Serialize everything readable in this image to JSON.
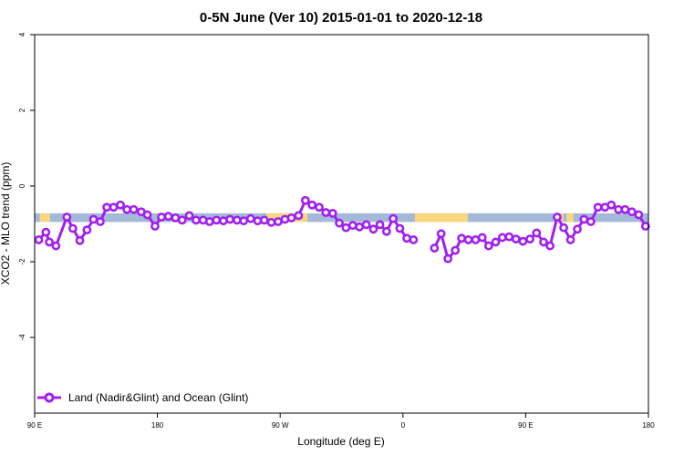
{
  "chart_data": {
    "type": "line",
    "title": "0-5N June (Ver 10)   2015-01-01 to 2020-12-18",
    "xlabel": "Longitude (deg E)",
    "ylabel": "XCO2 - MLO trend (ppm)",
    "xlim": [
      90,
      450
    ],
    "ylim": [
      -6,
      4
    ],
    "xticks": [
      {
        "value": 90,
        "label": "90 E"
      },
      {
        "value": 162,
        "label": "180"
      },
      {
        "value": 234,
        "label": "90 W"
      },
      {
        "value": 306,
        "label": "0"
      },
      {
        "value": 378,
        "label": "90 E"
      },
      {
        "value": 450,
        "label": "180"
      }
    ],
    "yticks": [
      {
        "value": 4,
        "label": "4"
      },
      {
        "value": 2,
        "label": "2"
      },
      {
        "value": 0,
        "label": "0"
      },
      {
        "value": -2,
        "label": "-2"
      },
      {
        "value": -4,
        "label": "-4"
      }
    ],
    "band": {
      "ymin": -0.95,
      "ymax": -0.72,
      "ocean_color": "#a4b9d8",
      "land_color": "#f9d77f",
      "land_segments": [
        [
          93,
          99
        ],
        [
          226,
          250
        ],
        [
          313,
          344
        ],
        [
          395,
          400
        ],
        [
          402,
          406
        ]
      ]
    },
    "series": [
      {
        "name": "Land (Nadir&Glint) and Ocean (Glint)",
        "color": "#a020f0",
        "segments": [
          {
            "x": [
              92.4,
              96.6,
              98.6,
              102.5,
              108.9,
              112.4,
              116.5,
              120.7,
              124.5,
              128.5,
              132.3,
              136.3,
              140.3,
              144.1,
              148.1,
              152.5,
              156.1,
              160.6,
              164.4,
              168.4,
              172.6,
              176.5,
              180.7,
              184.7,
              188.8,
              192.6,
              196.6,
              200.7,
              204.5,
              208.7,
              212.6,
              216.7,
              220.8,
              224.7,
              228.8,
              232.8,
              236.8,
              240.6,
              244.8,
              248.8,
              252.7,
              256.9,
              260.8,
              264.8,
              268.7,
              272.6,
              276.6,
              280.5,
              284.5,
              288.7,
              292.5,
              296.4,
              300.3,
              304.2,
              308.3,
              312.2
            ],
            "y": [
              -1.42,
              -1.22,
              -1.48,
              -1.58,
              -0.82,
              -1.12,
              -1.44,
              -1.16,
              -0.88,
              -0.94,
              -0.56,
              -0.56,
              -0.5,
              -0.62,
              -0.62,
              -0.68,
              -0.76,
              -1.06,
              -0.82,
              -0.8,
              -0.84,
              -0.9,
              -0.78,
              -0.9,
              -0.9,
              -0.94,
              -0.9,
              -0.92,
              -0.88,
              -0.9,
              -0.92,
              -0.86,
              -0.92,
              -0.9,
              -0.96,
              -0.94,
              -0.88,
              -0.84,
              -0.78,
              -0.38,
              -0.5,
              -0.56,
              -0.7,
              -0.72,
              -0.98,
              -1.1,
              -1.04,
              -1.08,
              -1.02,
              -1.14,
              -1.02,
              -1.2,
              -0.86,
              -1.12,
              -1.38,
              -1.42
            ]
          },
          {
            "x": [
              324.5,
              328.4,
              332.4,
              336.7,
              340.4,
              344.4,
              348.6,
              352.5,
              356.3,
              360.4,
              364.3,
              368.3,
              372.3,
              376.4,
              380.5,
              384.4,
              388.5,
              392.3,
              396.5,
              400.3,
              404.3,
              408.3,
              412.2,
              416.2,
              420.4,
              424.5,
              428.2,
              432.4,
              436.3,
              440.3,
              444.3,
              448.3
            ],
            "y": [
              -1.64,
              -1.26,
              -1.92,
              -1.7,
              -1.38,
              -1.42,
              -1.42,
              -1.36,
              -1.58,
              -1.48,
              -1.36,
              -1.34,
              -1.4,
              -1.46,
              -1.4,
              -1.24,
              -1.48,
              -1.58,
              -0.82,
              -1.1,
              -1.42,
              -1.14,
              -0.88,
              -0.94,
              -0.56,
              -0.56,
              -0.5,
              -0.62,
              -0.62,
              -0.68,
              -0.76,
              -1.06
            ]
          }
        ]
      }
    ],
    "legend": {
      "position": "bottom-left"
    }
  }
}
